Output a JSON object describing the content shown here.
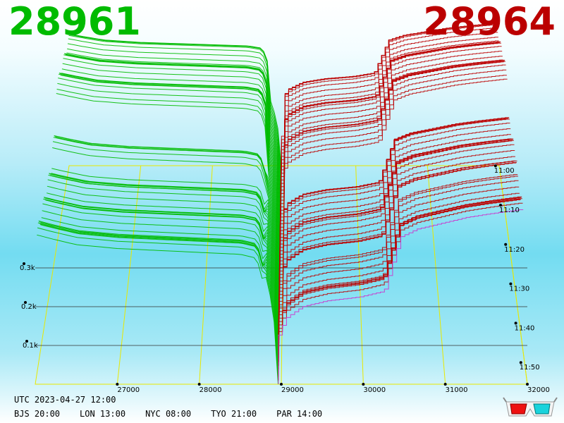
{
  "header": {
    "bid_price": "28961",
    "ask_price": "28964"
  },
  "colors": {
    "bid": "#00bb00",
    "ask": "#bb0000",
    "grid": "#e8e800",
    "depth_axis": "#333333",
    "latest_ask": "#cc33cc"
  },
  "footer": {
    "utc": "UTC 2023-04-27 12:00",
    "zones": [
      "BJS 20:00",
      "LON 13:00",
      "NYC 08:00",
      "TYO 21:00",
      "PAR 14:00"
    ]
  },
  "icons": {
    "glasses": "3d-glasses-icon"
  },
  "chart_data": {
    "type": "area",
    "title": "",
    "price_ticks": [
      27000,
      28000,
      29000,
      30000,
      31000,
      32000
    ],
    "depth_ticks": [
      "0.1k",
      "0.2k",
      "0.3k"
    ],
    "time_ticks": [
      "11:50",
      "11:40",
      "11:30",
      "11:20",
      "11:10",
      "11:00"
    ],
    "xlim": [
      26000,
      32000
    ],
    "zlim": [
      0,
      1000
    ],
    "mid_price": 28962.5,
    "snapshot_count": 60,
    "series": [
      {
        "name": "bid",
        "x": [
          26020,
          26200,
          26500,
          27000,
          27500,
          28000,
          28500,
          28700,
          28800,
          28850,
          28900,
          28961
        ],
        "depth": [
          430,
          420,
          405,
          395,
          390,
          385,
          380,
          370,
          290,
          240,
          200,
          0
        ]
      },
      {
        "name": "ask",
        "x": [
          28964,
          29000,
          29100,
          29300,
          29600,
          30000,
          30300,
          30500,
          30700,
          31000,
          31300,
          31600,
          31950
        ],
        "depth": [
          0,
          120,
          170,
          200,
          215,
          225,
          240,
          380,
          400,
          415,
          430,
          440,
          450
        ]
      }
    ]
  }
}
